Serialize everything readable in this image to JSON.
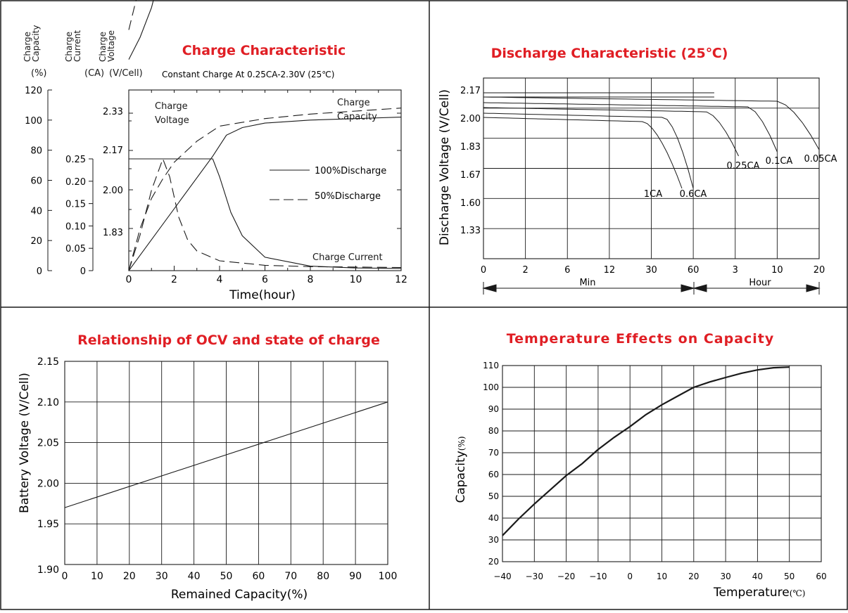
{
  "colors": {
    "title": "#e01e24",
    "ink": "#1a1a1a",
    "grid": "#1a1a1a",
    "background": "#ffffff"
  },
  "chart_data": [
    {
      "id": "charge",
      "type": "line",
      "title": "Charge Characteristic",
      "subtitle": "Constant Charge At 0.25CA-2.30V  (25℃)",
      "xlabel": "Time(hour)",
      "xlim": [
        0,
        12
      ],
      "x_ticks": [
        "0",
        "2",
        "4",
        "6",
        "8",
        "10",
        "12"
      ],
      "axes": [
        {
          "header": "Charge Capacity",
          "unit": "(%)",
          "ticks": [
            "0",
            "20",
            "40",
            "60",
            "80",
            "100",
            "120"
          ]
        },
        {
          "header": "Charge Current",
          "unit": "(CA)",
          "ticks": [
            "0",
            "0.05",
            "0.10",
            "0.15",
            "0.20",
            "0.25"
          ]
        },
        {
          "header": "Charge Voltage",
          "unit": "(V/Cell)",
          "ticks": [
            "1.83",
            "2.00",
            "2.17",
            "2.33"
          ]
        }
      ],
      "legend": [
        {
          "label": "100%Discharge",
          "style": "solid"
        },
        {
          "label": "50%Discharge",
          "style": "dashed"
        }
      ],
      "annotations": [
        "Charge",
        "Voltage",
        "Charge",
        "Capacity",
        "Charge Current"
      ],
      "series": [
        {
          "quantity": "voltage",
          "discharge": "100%",
          "style": "solid",
          "x": [
            0,
            0.5,
            1.0,
            1.5,
            2.0,
            2.6,
            3.0,
            12
          ],
          "y": [
            2.02,
            2.05,
            2.09,
            2.15,
            2.22,
            2.3,
            2.31,
            2.31
          ]
        },
        {
          "quantity": "voltage",
          "discharge": "50%",
          "style": "dashed",
          "x": [
            0,
            0.4,
            0.8,
            1.2,
            1.6,
            2.0,
            3.0,
            12
          ],
          "y": [
            2.06,
            2.11,
            2.17,
            2.23,
            2.28,
            2.31,
            2.31,
            2.31
          ]
        },
        {
          "quantity": "capacity",
          "discharge": "100%",
          "style": "solid",
          "x": [
            0,
            3.7,
            4.3,
            5.0,
            6.0,
            8.0,
            10.0,
            12.0
          ],
          "y": [
            0,
            76,
            90,
            95,
            98,
            100,
            101,
            102
          ]
        },
        {
          "quantity": "capacity",
          "discharge": "50%",
          "style": "dashed",
          "x": [
            0,
            0.5,
            1.0,
            1.5,
            2.0,
            3.0,
            4.0,
            6.0,
            8.0,
            10.0,
            12.0
          ],
          "y": [
            0,
            28,
            48,
            61,
            72,
            86,
            96,
            101,
            104,
            106,
            108
          ]
        },
        {
          "quantity": "current",
          "discharge": "100%",
          "style": "solid",
          "x": [
            0,
            3.7,
            4.0,
            4.5,
            5.0,
            6.0,
            8.0,
            10.0,
            12.0
          ],
          "y": [
            0.25,
            0.25,
            0.21,
            0.13,
            0.078,
            0.03,
            0.01,
            0.006,
            0.005
          ]
        },
        {
          "quantity": "current",
          "discharge": "50%",
          "style": "dashed",
          "x": [
            0,
            0.5,
            1.0,
            1.5,
            1.8,
            2.2,
            2.6,
            3.0,
            4.0,
            6.0,
            8.0,
            12.0
          ],
          "y": [
            0,
            0.08,
            0.18,
            0.25,
            0.21,
            0.12,
            0.068,
            0.044,
            0.022,
            0.012,
            0.009,
            0.007
          ]
        }
      ]
    },
    {
      "id": "discharge",
      "type": "line",
      "title": "Discharge Characteristic  (25℃)",
      "ylabel": "Discharge Voltage (V/Cell)",
      "y_ticks": [
        "1.33",
        "1.60",
        "1.67",
        "1.83",
        "2.00",
        "2.17"
      ],
      "x_ticks": [
        "0",
        "2",
        "6",
        "12",
        "30",
        "60",
        "3",
        "10",
        "20"
      ],
      "x_groups": [
        "Min",
        "Hour"
      ],
      "curves": [
        {
          "label": "1CA",
          "end_tick": 4.73
        },
        {
          "label": "0.6CA",
          "end_tick": 5.0
        },
        {
          "label": "0.25CA",
          "end_tick": 6.08
        },
        {
          "label": "0.1CA",
          "end_tick": 7.0
        },
        {
          "label": "0.05CA",
          "end_tick": 8.0
        }
      ]
    },
    {
      "id": "ocv",
      "type": "line",
      "title": "Relationship of OCV and state of charge",
      "xlabel": "Remained Capacity(%)",
      "ylabel": "Battery Voltage (V/Cell)",
      "xlim": [
        0,
        100
      ],
      "ylim": [
        1.9,
        2.15
      ],
      "x_ticks": [
        "0",
        "10",
        "20",
        "30",
        "40",
        "50",
        "60",
        "70",
        "80",
        "90",
        "100"
      ],
      "y_ticks": [
        "1.90",
        "1.95",
        "2.00",
        "2.05",
        "2.10",
        "2.15"
      ],
      "x": [
        0,
        100
      ],
      "y": [
        1.97,
        2.1
      ]
    },
    {
      "id": "temperature",
      "type": "line",
      "title": "Temperature Effects on Capacity",
      "xlabel": "Temperature",
      "xunit": "(℃)",
      "ylabel": "Capacity",
      "yunit": "(%)",
      "xlim": [
        -40,
        60
      ],
      "ylim": [
        20,
        110
      ],
      "x_ticks": [
        "−40",
        "−30",
        "−20",
        "−10",
        "0",
        "10",
        "20",
        "30",
        "40",
        "50",
        "60"
      ],
      "y_ticks": [
        "20",
        "30",
        "40",
        "50",
        "60",
        "70",
        "80",
        "90",
        "100",
        "110"
      ],
      "x": [
        -40,
        -35,
        -30,
        -25,
        -20,
        -15,
        -10,
        -5,
        0,
        5,
        10,
        15,
        20,
        25,
        30,
        35,
        40,
        45,
        50
      ],
      "y": [
        32,
        39.5,
        46.5,
        53,
        59.5,
        65,
        71.5,
        77,
        82,
        87.5,
        92,
        96,
        100,
        102.5,
        104.5,
        106.5,
        108,
        109,
        109.3
      ]
    }
  ]
}
